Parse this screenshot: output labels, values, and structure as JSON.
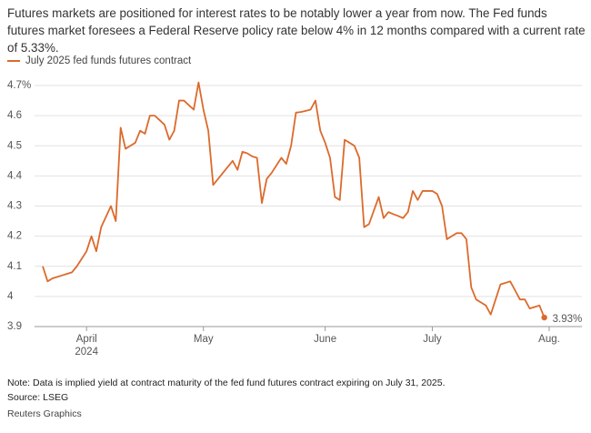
{
  "chart_data": {
    "type": "line",
    "title": "Futures markets are positioned for interest rates to be notably lower a year from now. The Fed funds futures market foresees a Federal Reserve policy rate below 4% in 12 months compared with a current rate of 5.33%.",
    "categories": [
      null,
      null,
      null,
      null,
      null,
      null,
      null,
      null,
      null,
      "April",
      null,
      null,
      null,
      null,
      null,
      null,
      null,
      null,
      null,
      null,
      null,
      null,
      null,
      null,
      null,
      null,
      null,
      null,
      null,
      null,
      null,
      null,
      null,
      "May",
      null,
      null,
      null,
      null,
      null,
      null,
      null,
      null,
      null,
      null,
      null,
      null,
      null,
      null,
      null,
      null,
      null,
      null,
      null,
      null,
      null,
      null,
      null,
      null,
      "June",
      null,
      null,
      null,
      null,
      null,
      null,
      null,
      null,
      null,
      null,
      null,
      null,
      null,
      null,
      null,
      null,
      null,
      null,
      null,
      null,
      null,
      "July",
      null,
      null,
      null,
      null,
      null,
      null,
      null,
      null,
      null,
      null,
      null,
      null,
      null,
      null,
      null,
      null,
      null,
      null,
      null,
      null,
      null,
      null,
      null,
      "Aug."
    ],
    "year_label": "2024",
    "series": [
      {
        "name": "July 2025 fed funds futures contract",
        "color": "#dc6a2c",
        "values": [
          4.1,
          4.05,
          4.06,
          4.065,
          4.07,
          4.075,
          4.08,
          4.1,
          4.125,
          4.15,
          4.2,
          4.15,
          4.23,
          4.265,
          4.3,
          4.25,
          4.56,
          4.49,
          4.5,
          4.51,
          4.55,
          4.54,
          4.6,
          4.6,
          4.585,
          4.57,
          4.52,
          4.55,
          4.65,
          4.65,
          4.635,
          4.62,
          4.71,
          4.62,
          4.55,
          4.37,
          4.39,
          4.41,
          4.43,
          4.45,
          4.42,
          4.48,
          4.475,
          4.465,
          4.46,
          4.31,
          4.39,
          4.41,
          4.435,
          4.46,
          4.44,
          4.5,
          4.61,
          4.612,
          4.616,
          4.62,
          4.65,
          4.55,
          4.51,
          4.46,
          4.33,
          4.32,
          4.52,
          4.51,
          4.5,
          4.46,
          4.23,
          4.24,
          4.285,
          4.33,
          4.26,
          4.28,
          4.273,
          4.267,
          4.26,
          4.28,
          4.35,
          4.32,
          4.35,
          4.35,
          4.35,
          4.34,
          4.3,
          4.19,
          4.2,
          4.21,
          4.21,
          4.19,
          4.03,
          3.99,
          3.98,
          3.97,
          3.94,
          3.99,
          4.04,
          4.045,
          4.05,
          4.02,
          3.99,
          3.99,
          3.96,
          3.965,
          3.97,
          3.93,
          null
        ],
        "value_labels": [
          null,
          null,
          null,
          null,
          null,
          null,
          null,
          null,
          null,
          null,
          null,
          null,
          null,
          null,
          null,
          null,
          null,
          null,
          null,
          null,
          null,
          null,
          null,
          null,
          null,
          null,
          null,
          null,
          null,
          null,
          null,
          null,
          null,
          null,
          null,
          null,
          null,
          null,
          null,
          null,
          null,
          null,
          null,
          null,
          null,
          null,
          null,
          null,
          null,
          null,
          null,
          null,
          null,
          null,
          null,
          null,
          null,
          null,
          null,
          null,
          null,
          null,
          null,
          null,
          null,
          null,
          null,
          null,
          null,
          null,
          null,
          null,
          null,
          null,
          null,
          null,
          null,
          null,
          null,
          null,
          null,
          null,
          null,
          null,
          null,
          null,
          null,
          null,
          null,
          null,
          null,
          null,
          null,
          null,
          null,
          null,
          null,
          null,
          null,
          null,
          null,
          null,
          null,
          "3.93%",
          null
        ]
      }
    ],
    "ylim": [
      3.9,
      4.72
    ],
    "yticks": [
      3.9,
      4,
      4.1,
      4.2,
      4.3,
      4.4,
      4.5,
      4.6,
      {
        "value": 4.7,
        "label": "4.7%"
      }
    ],
    "grid": true,
    "note": "Note: Data is implied yield at contract maturity of the fed fund futures contract expiring on July 31, 2025.",
    "source": "Source: LSEG",
    "credit": "Reuters Graphics"
  }
}
